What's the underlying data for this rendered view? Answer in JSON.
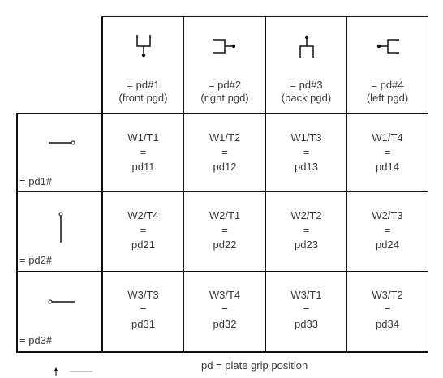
{
  "columns": [
    {
      "label": "= pd#1",
      "sub": "(front pgd)",
      "icon": "front-grip-icon"
    },
    {
      "label": "= pd#2",
      "sub": "(right pgd)",
      "icon": "right-grip-icon"
    },
    {
      "label": "= pd#3",
      "sub": "(back pgd)",
      "icon": "back-grip-icon"
    },
    {
      "label": "= pd#4",
      "sub": "(left pgd)",
      "icon": "left-grip-icon"
    }
  ],
  "rows": [
    {
      "label": "= pd1#",
      "icon": "horizontal-plate-right-pin-icon",
      "cells": [
        {
          "combo": "W1/T1",
          "eq": "=",
          "code": "pd11"
        },
        {
          "combo": "W1/T2",
          "eq": "=",
          "code": "pd12"
        },
        {
          "combo": "W1/T3",
          "eq": "=",
          "code": "pd13"
        },
        {
          "combo": "W1/T4",
          "eq": "=",
          "code": "pd14"
        }
      ]
    },
    {
      "label": "= pd2#",
      "icon": "vertical-plate-top-pin-icon",
      "cells": [
        {
          "combo": "W2/T4",
          "eq": "=",
          "code": "pd21"
        },
        {
          "combo": "W2/T1",
          "eq": "=",
          "code": "pd22"
        },
        {
          "combo": "W2/T2",
          "eq": "=",
          "code": "pd23"
        },
        {
          "combo": "W2/T3",
          "eq": "=",
          "code": "pd24"
        }
      ]
    },
    {
      "label": "= pd3#",
      "icon": "horizontal-plate-left-pin-icon",
      "cells": [
        {
          "combo": "W3/T3",
          "eq": "=",
          "code": "pd31"
        },
        {
          "combo": "W3/T4",
          "eq": "=",
          "code": "pd32"
        },
        {
          "combo": "W3/T1",
          "eq": "=",
          "code": "pd33"
        },
        {
          "combo": "W3/T2",
          "eq": "=",
          "code": "pd34"
        }
      ]
    }
  ],
  "caption": "pd = plate grip position",
  "legend_icon": "orientation-arrow-icon"
}
